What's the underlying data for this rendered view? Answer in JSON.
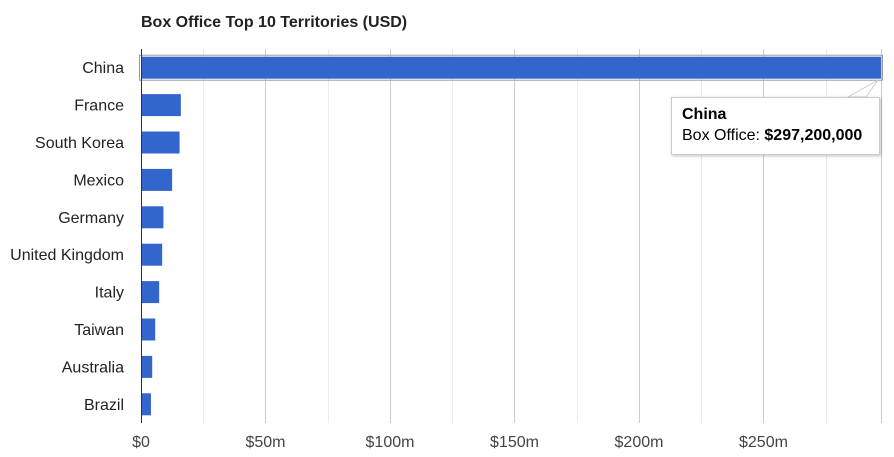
{
  "chart_data": {
    "type": "bar",
    "orientation": "horizontal",
    "title": "Box Office Top 10 Territories (USD)",
    "categories": [
      "China",
      "France",
      "South Korea",
      "Mexico",
      "Germany",
      "United Kingdom",
      "Italy",
      "Taiwan",
      "Australia",
      "Brazil"
    ],
    "values": [
      297200000,
      16000000,
      15500000,
      12500000,
      9000000,
      8500000,
      7300000,
      5700000,
      4500000,
      4000000
    ],
    "xlim": [
      0,
      297200000
    ],
    "x_ticks": [
      0,
      50000000,
      100000000,
      150000000,
      200000000,
      250000000
    ],
    "x_tick_labels": [
      "$0",
      "$50m",
      "$100m",
      "$150m",
      "$200m",
      "$250m"
    ],
    "grid": true,
    "colors": {
      "bar": "#3366cc",
      "bar_highlight": "#3366cc",
      "grid": "#cccccc",
      "grid_minor": "#ebebeb"
    }
  },
  "tooltip": {
    "title": "China",
    "label": "Box Office: ",
    "value": "$297,200,000"
  }
}
